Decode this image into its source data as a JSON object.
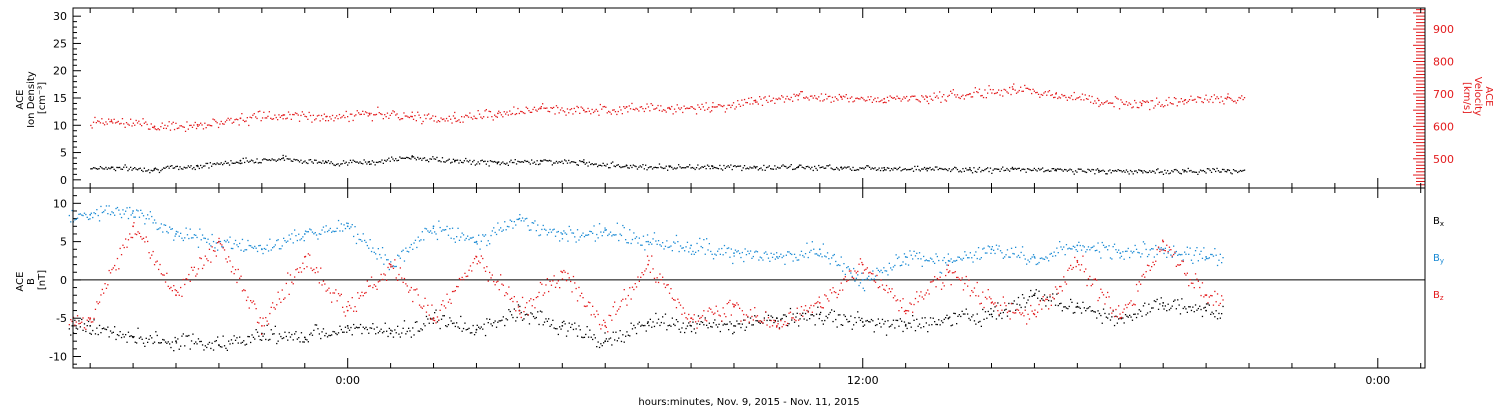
{
  "chart_data": [
    {
      "type": "scatter",
      "title": "",
      "xlabel": "hours:minutes, Nov.  9, 2015 - Nov. 11, 2015",
      "x_unit": "hours since Nov. 9, 2015 00:00",
      "xlim": [
        -6.4,
        25.1
      ],
      "x_ticks": [
        "0:00",
        "12:00",
        "0:00"
      ],
      "x_tick_values": [
        0,
        12,
        24
      ],
      "left_axis": {
        "label_lines": [
          "ACE",
          "Ion Density",
          "[cm⁻³]"
        ],
        "ylim": [
          -1.5,
          31.5
        ],
        "ticks": [
          0,
          5,
          10,
          15,
          20,
          25,
          30
        ],
        "color": "#000000"
      },
      "right_axis": {
        "label_lines": [
          "ACE",
          "Velocity",
          "[km/s]"
        ],
        "ylim": [
          410,
          965
        ],
        "ticks": [
          500,
          600,
          700,
          800,
          900
        ],
        "color": "#e31a1c"
      },
      "series": [
        {
          "axis": "left",
          "color": "#000000",
          "x": [
            -5.5,
            -4.5,
            -3.5,
            -2.5,
            -1.5,
            -0.5,
            0.5,
            1.5,
            2.5,
            3.5,
            4.5,
            5.5,
            6.5,
            7.5,
            8.5,
            9.5,
            10.5,
            11.5,
            12.5,
            13.5,
            14.5,
            15.5,
            16.5,
            17.5,
            18.5,
            19.5,
            20.5
          ],
          "y": [
            2.3,
            2.0,
            2.6,
            3.5,
            4.0,
            3.2,
            3.3,
            4.2,
            3.5,
            3.2,
            3.5,
            3.2,
            2.6,
            2.4,
            2.5,
            2.3,
            2.4,
            2.3,
            2.2,
            2.1,
            1.9,
            2.0,
            1.9,
            1.7,
            1.6,
            1.7,
            1.8
          ]
        },
        {
          "axis": "right",
          "color": "#e31a1c",
          "x": [
            -5.5,
            -4.5,
            -3.5,
            -2.5,
            -1.5,
            -0.5,
            0.5,
            1.5,
            2.5,
            3.5,
            4.5,
            5.5,
            6.5,
            7.5,
            8.5,
            9.5,
            10.5,
            11.5,
            12.5,
            13.5,
            14.5,
            15.5,
            16.5,
            17.5,
            18.5,
            19.5,
            20.5
          ],
          "y": [
            615,
            600,
            605,
            625,
            635,
            630,
            640,
            630,
            625,
            640,
            655,
            650,
            660,
            655,
            660,
            680,
            695,
            690,
            685,
            690,
            700,
            715,
            700,
            680,
            670,
            680,
            690
          ]
        }
      ]
    },
    {
      "type": "scatter",
      "title": "",
      "x_unit": "hours since Nov. 9, 2015 00:00",
      "xlim": [
        -6.4,
        25.1
      ],
      "left_axis": {
        "label_lines": [
          "ACE",
          "B",
          "[nT]"
        ],
        "ylim": [
          -11.5,
          12
        ],
        "ticks": [
          -10,
          -5,
          0,
          5,
          10
        ]
      },
      "zero_line": true,
      "series": [
        {
          "name": "Bx",
          "color": "#000000",
          "x": [
            -6.0,
            -5.0,
            -4.0,
            -3.0,
            -2.0,
            -1.0,
            0.0,
            1.0,
            2.0,
            3.0,
            4.0,
            5.0,
            6.0,
            7.0,
            8.0,
            9.0,
            10.0,
            11.0,
            12.0,
            13.0,
            14.0,
            15.0,
            16.0,
            17.0,
            18.0,
            19.0,
            20.0
          ],
          "y": [
            -6.0,
            -7.5,
            -8.0,
            -8.5,
            -7.0,
            -7.5,
            -6.0,
            -7.0,
            -5.0,
            -6.5,
            -4.0,
            -6.0,
            -8.0,
            -5.5,
            -6.0,
            -6.0,
            -5.0,
            -4.5,
            -5.5,
            -6.0,
            -5.0,
            -4.5,
            -2.0,
            -3.5,
            -5.0,
            -3.0,
            -4.0
          ]
        },
        {
          "name": "By",
          "color": "#1a8ad4",
          "x": [
            -6.0,
            -5.0,
            -4.0,
            -3.0,
            -2.0,
            -1.0,
            0.0,
            1.0,
            2.0,
            3.0,
            4.0,
            5.0,
            6.0,
            7.0,
            8.0,
            9.0,
            10.0,
            11.0,
            12.0,
            13.0,
            14.0,
            15.0,
            16.0,
            17.0,
            18.0,
            19.0,
            20.0
          ],
          "y": [
            8.5,
            9.0,
            6.0,
            5.0,
            4.0,
            6.0,
            7.0,
            2.0,
            7.0,
            5.0,
            8.0,
            6.0,
            6.5,
            5.0,
            4.5,
            3.5,
            3.0,
            4.0,
            0.0,
            3.0,
            2.5,
            4.0,
            3.0,
            4.5,
            3.5,
            4.0,
            3.0
          ]
        },
        {
          "name": "Bz",
          "color": "#e31a1c",
          "x": [
            -6.0,
            -5.0,
            -4.0,
            -3.0,
            -2.0,
            -1.0,
            0.0,
            1.0,
            2.0,
            3.0,
            4.0,
            5.0,
            6.0,
            7.0,
            8.0,
            9.0,
            10.0,
            11.0,
            12.0,
            13.0,
            14.0,
            15.0,
            16.0,
            17.0,
            18.0,
            19.0,
            20.0
          ],
          "y": [
            -5.0,
            7.0,
            -2.0,
            5.0,
            -6.0,
            3.0,
            -4.0,
            2.0,
            -5.0,
            3.0,
            -4.0,
            1.0,
            -6.0,
            2.0,
            -5.0,
            -3.5,
            -6.0,
            -3.0,
            2.0,
            -4.0,
            1.0,
            -3.0,
            -4.5,
            2.5,
            -5.0,
            5.0,
            -2.0
          ]
        }
      ],
      "legend": {
        "placement": "right",
        "entries": [
          {
            "base": "B",
            "sub": "x",
            "color": "#000000"
          },
          {
            "base": "B",
            "sub": "y",
            "color": "#1a8ad4"
          },
          {
            "base": "B",
            "sub": "z",
            "color": "#e31a1c"
          }
        ]
      }
    }
  ]
}
